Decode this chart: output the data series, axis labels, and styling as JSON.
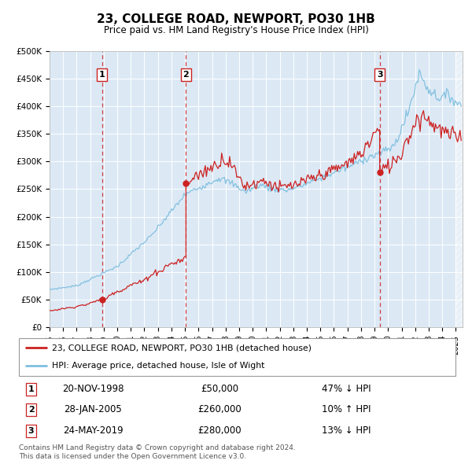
{
  "title": "23, COLLEGE ROAD, NEWPORT, PO30 1HB",
  "subtitle": "Price paid vs. HM Land Registry's House Price Index (HPI)",
  "ylim": [
    0,
    500000
  ],
  "yticks": [
    0,
    50000,
    100000,
    150000,
    200000,
    250000,
    300000,
    350000,
    400000,
    450000,
    500000
  ],
  "ytick_labels": [
    "£0",
    "£50K",
    "£100K",
    "£150K",
    "£200K",
    "£250K",
    "£300K",
    "£350K",
    "£400K",
    "£450K",
    "£500K"
  ],
  "bg_color": "#dce9f5",
  "grid_color": "#ffffff",
  "hpi_color": "#7fbfdf",
  "price_color": "#cc2222",
  "vline_color": "#cc2222",
  "transactions": [
    {
      "id": 1,
      "date_num": 1998.88,
      "price": 50000
    },
    {
      "id": 2,
      "date_num": 2005.07,
      "price": 260000
    },
    {
      "id": 3,
      "date_num": 2019.38,
      "price": 280000
    }
  ],
  "legend_line1": "23, COLLEGE ROAD, NEWPORT, PO30 1HB (detached house)",
  "legend_line2": "HPI: Average price, detached house, Isle of Wight",
  "table_rows": [
    [
      1,
      "20-NOV-1998",
      "£50,000",
      "47% ↓ HPI"
    ],
    [
      2,
      "28-JAN-2005",
      "£260,000",
      "10% ↑ HPI"
    ],
    [
      3,
      "24-MAY-2019",
      "£280,000",
      "13% ↓ HPI"
    ]
  ],
  "footer1": "Contains HM Land Registry data © Crown copyright and database right 2024.",
  "footer2": "This data is licensed under the Open Government Licence v3.0.",
  "xmin": 1995.0,
  "xmax": 2025.5
}
